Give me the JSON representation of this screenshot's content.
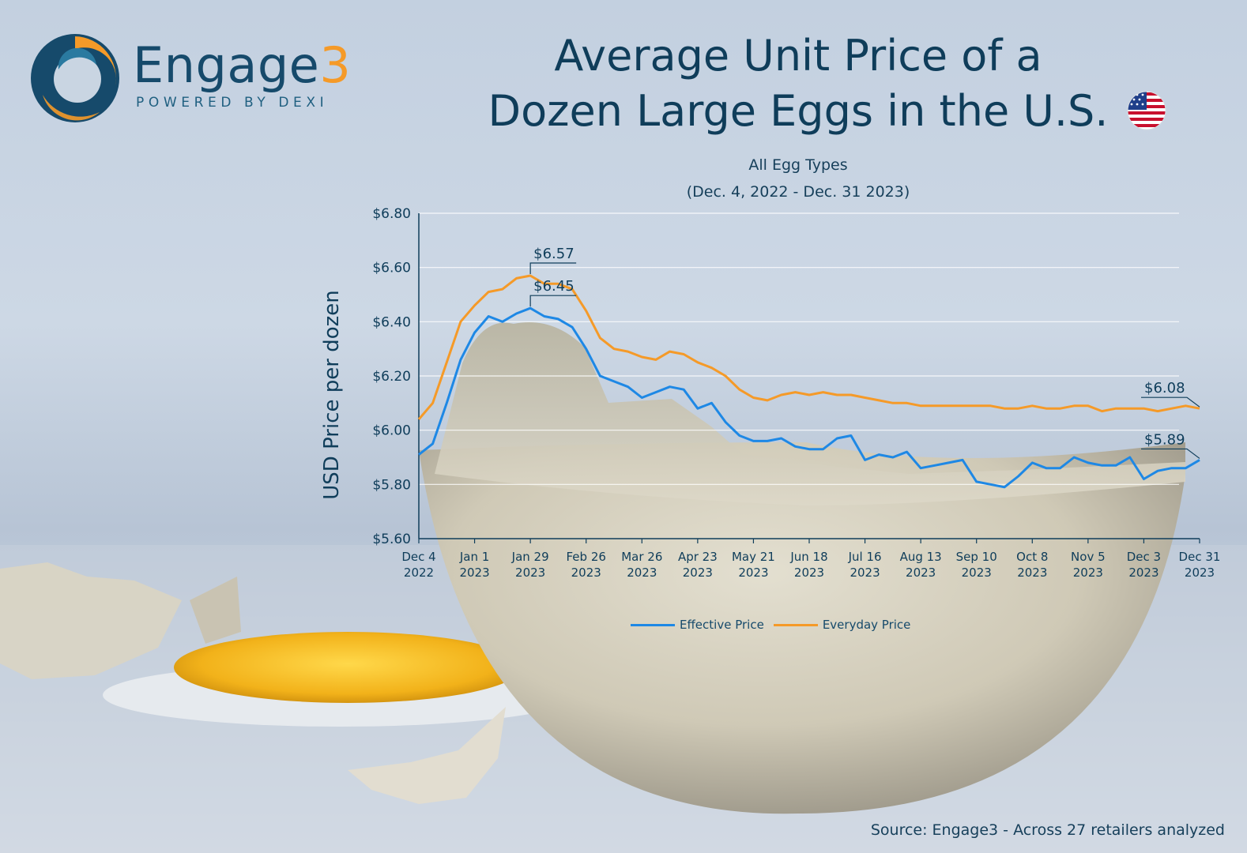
{
  "brand": {
    "name_main": "Engage",
    "name_accent": "3",
    "tagline": "POWERED BY DEXI",
    "colors": {
      "teal": "#164a6b",
      "orange": "#f59a28"
    }
  },
  "title_line1": "Average Unit Price of a",
  "title_line2": "Dozen Large Eggs in the U.S.",
  "flag_icon": "us-flag-icon",
  "subtitle_line1": "All Egg Types",
  "subtitle_line2": "(Dec. 4, 2022 - Dec. 31 2023)",
  "source": "Source: Engage3 - Across 27 retailers analyzed",
  "chart_data": {
    "type": "line",
    "title": "Average Unit Price of a Dozen Large Eggs in the U.S.",
    "subtitle": "All Egg Types (Dec. 4, 2022 - Dec. 31 2023)",
    "ylabel": "USD Price per dozen",
    "xlabel": "",
    "ylim": [
      5.6,
      6.8
    ],
    "yticks": [
      5.6,
      5.8,
      6.0,
      6.2,
      6.4,
      6.6,
      6.8
    ],
    "ytick_labels": [
      "$5.60",
      "$5.80",
      "$6.00",
      "$6.20",
      "$6.40",
      "$6.60",
      "$6.80"
    ],
    "grid": "horizontal",
    "legend_position": "bottom-center",
    "x_tick_labels": [
      [
        "Dec 4",
        "2022"
      ],
      [
        "Jan 1",
        "2023"
      ],
      [
        "Jan 29",
        "2023"
      ],
      [
        "Feb 26",
        "2023"
      ],
      [
        "Mar 26",
        "2023"
      ],
      [
        "Apr 23",
        "2023"
      ],
      [
        "May 21",
        "2023"
      ],
      [
        "Jun 18",
        "2023"
      ],
      [
        "Jul 16",
        "2023"
      ],
      [
        "Aug 13",
        "2023"
      ],
      [
        "Sep 10",
        "2023"
      ],
      [
        "Oct 8",
        "2023"
      ],
      [
        "Nov 5",
        "2023"
      ],
      [
        "Dec 3",
        "2023"
      ],
      [
        "Dec 31",
        "2023"
      ]
    ],
    "x": [
      "2022-12-04",
      "2022-12-11",
      "2022-12-18",
      "2022-12-25",
      "2023-01-01",
      "2023-01-08",
      "2023-01-15",
      "2023-01-22",
      "2023-01-29",
      "2023-02-05",
      "2023-02-12",
      "2023-02-19",
      "2023-02-26",
      "2023-03-05",
      "2023-03-12",
      "2023-03-19",
      "2023-03-26",
      "2023-04-02",
      "2023-04-09",
      "2023-04-16",
      "2023-04-23",
      "2023-04-30",
      "2023-05-07",
      "2023-05-14",
      "2023-05-21",
      "2023-05-28",
      "2023-06-04",
      "2023-06-11",
      "2023-06-18",
      "2023-06-25",
      "2023-07-02",
      "2023-07-09",
      "2023-07-16",
      "2023-07-23",
      "2023-07-30",
      "2023-08-06",
      "2023-08-13",
      "2023-08-20",
      "2023-08-27",
      "2023-09-03",
      "2023-09-10",
      "2023-09-17",
      "2023-09-24",
      "2023-10-01",
      "2023-10-08",
      "2023-10-15",
      "2023-10-22",
      "2023-10-29",
      "2023-11-05",
      "2023-11-12",
      "2023-11-19",
      "2023-11-26",
      "2023-12-03",
      "2023-12-10",
      "2023-12-17",
      "2023-12-24",
      "2023-12-31"
    ],
    "series": [
      {
        "name": "Effective Price",
        "color": "#1e88e5",
        "values": [
          5.91,
          5.95,
          6.1,
          6.26,
          6.36,
          6.42,
          6.4,
          6.43,
          6.45,
          6.42,
          6.41,
          6.38,
          6.3,
          6.2,
          6.18,
          6.16,
          6.12,
          6.14,
          6.16,
          6.15,
          6.08,
          6.1,
          6.03,
          5.98,
          5.96,
          5.96,
          5.97,
          5.94,
          5.93,
          5.93,
          5.97,
          5.98,
          5.89,
          5.91,
          5.9,
          5.92,
          5.86,
          5.87,
          5.88,
          5.89,
          5.81,
          5.8,
          5.79,
          5.83,
          5.88,
          5.86,
          5.86,
          5.9,
          5.88,
          5.87,
          5.87,
          5.9,
          5.82,
          5.85,
          5.86,
          5.86,
          5.89
        ],
        "annotations": [
          {
            "label": "$6.45",
            "value": 6.45,
            "at": "2023-01-29"
          },
          {
            "label": "$5.89",
            "value": 5.89,
            "at": "2023-12-31"
          }
        ]
      },
      {
        "name": "Everyday Price",
        "color": "#f59a28",
        "values": [
          6.04,
          6.1,
          6.25,
          6.4,
          6.46,
          6.51,
          6.52,
          6.56,
          6.57,
          6.54,
          6.54,
          6.52,
          6.44,
          6.34,
          6.3,
          6.29,
          6.27,
          6.26,
          6.29,
          6.28,
          6.25,
          6.23,
          6.2,
          6.15,
          6.12,
          6.11,
          6.13,
          6.14,
          6.13,
          6.14,
          6.13,
          6.13,
          6.12,
          6.11,
          6.1,
          6.1,
          6.09,
          6.09,
          6.09,
          6.09,
          6.09,
          6.09,
          6.08,
          6.08,
          6.09,
          6.08,
          6.08,
          6.09,
          6.09,
          6.07,
          6.08,
          6.08,
          6.08,
          6.07,
          6.08,
          6.09,
          6.08
        ],
        "annotations": [
          {
            "label": "$6.57",
            "value": 6.57,
            "at": "2023-01-29"
          },
          {
            "label": "$6.08",
            "value": 6.08,
            "at": "2023-12-31"
          }
        ]
      }
    ]
  }
}
